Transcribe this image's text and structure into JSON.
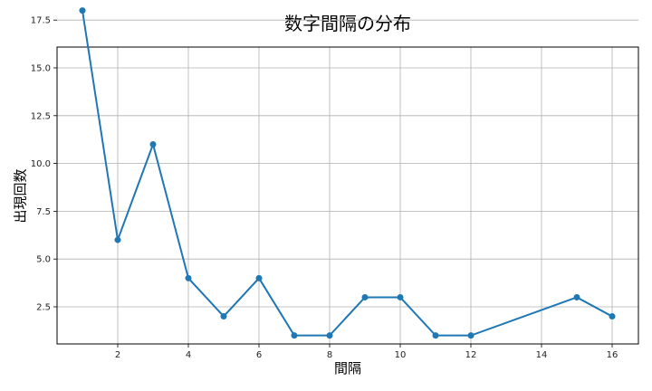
{
  "chart_data": {
    "type": "line",
    "title": "数字間隔の分布",
    "xlabel": "間隔",
    "ylabel": "出現回数",
    "x": [
      1,
      2,
      3,
      4,
      5,
      6,
      7,
      8,
      9,
      10,
      11,
      12,
      15,
      16
    ],
    "values": [
      18,
      6,
      11,
      4,
      2,
      4,
      1,
      1,
      3,
      3,
      1,
      1,
      3,
      2
    ],
    "x_ticks": [
      2,
      4,
      6,
      8,
      10,
      12,
      14,
      16
    ],
    "y_ticks": [
      2.5,
      5.0,
      7.5,
      10.0,
      12.5,
      15.0,
      17.5
    ],
    "xlim": [
      0.2,
      16.8
    ],
    "ylim": [
      0.15,
      18.85
    ],
    "grid": true,
    "line_color": "#1f77b4"
  }
}
